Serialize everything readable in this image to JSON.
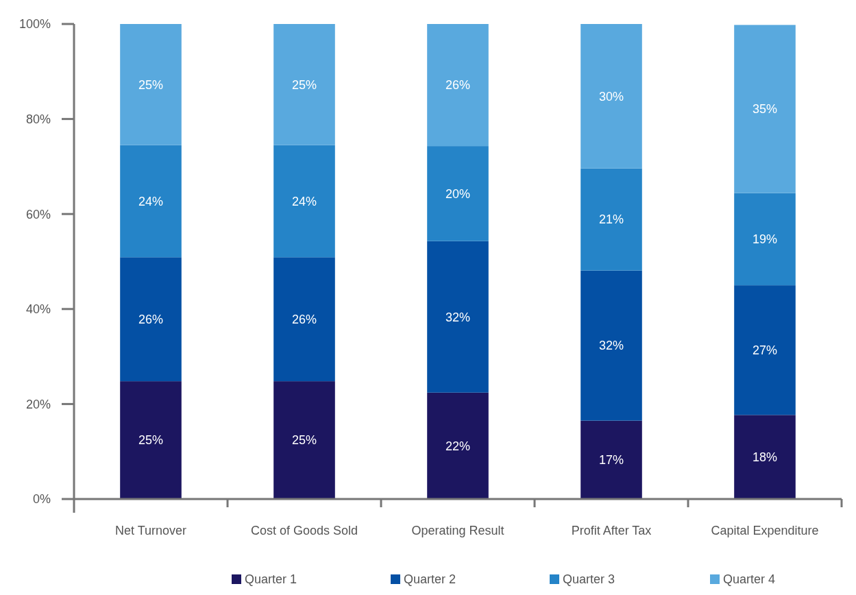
{
  "chart_data": {
    "type": "bar",
    "stacked": true,
    "categories": [
      "Net Turnover",
      "Cost of Goods Sold",
      "Operating Result",
      "Profit After Tax",
      "Capital Expenditure"
    ],
    "series": [
      {
        "name": "Quarter 1",
        "color": "#1c1660",
        "values": [
          24.8,
          24.8,
          22.4,
          16.5,
          17.7
        ],
        "value_labels": [
          "25%",
          "25%",
          "22%",
          "17%",
          "18%"
        ]
      },
      {
        "name": "Quarter 2",
        "color": "#0450a4",
        "values": [
          26.1,
          26.1,
          31.9,
          31.6,
          27.3
        ],
        "value_labels": [
          "26%",
          "26%",
          "32%",
          "32%",
          "27%"
        ]
      },
      {
        "name": "Quarter 3",
        "color": "#2584c8",
        "values": [
          23.6,
          23.6,
          20.0,
          21.5,
          19.4
        ],
        "value_labels": [
          "24%",
          "24%",
          "20%",
          "21%",
          "19%"
        ]
      },
      {
        "name": "Quarter 4",
        "color": "#59a9de",
        "values": [
          25.5,
          25.5,
          25.7,
          30.4,
          35.4
        ],
        "value_labels": [
          "25%",
          "25%",
          "26%",
          "30%",
          "35%"
        ]
      }
    ],
    "ylim": [
      0,
      100
    ],
    "yticks": [
      {
        "value": 0,
        "label": "0%"
      },
      {
        "value": 20,
        "label": "20%"
      },
      {
        "value": 40,
        "label": "40%"
      },
      {
        "value": 60,
        "label": "60%"
      },
      {
        "value": 80,
        "label": "80%"
      },
      {
        "value": 100,
        "label": "100%"
      }
    ],
    "grid": false,
    "legend": "bottom"
  }
}
